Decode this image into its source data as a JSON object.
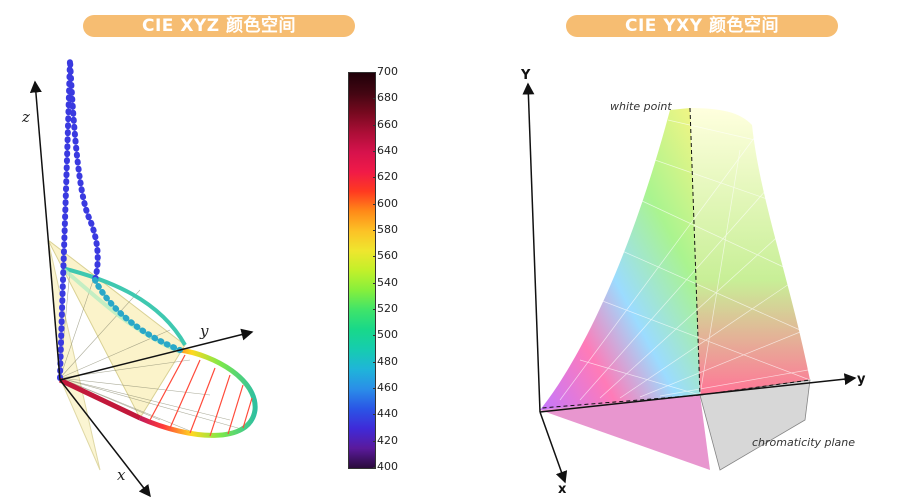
{
  "titles": {
    "left": "CIE XYZ 颜色空间",
    "right": "CIE YXY 颜色空间"
  },
  "left_figure": {
    "axes": {
      "x": "x",
      "y": "y",
      "z": "z"
    },
    "colorbar": {
      "ticks": [
        "700",
        "680",
        "660",
        "640",
        "620",
        "600",
        "580",
        "560",
        "540",
        "520",
        "500",
        "480",
        "460",
        "440",
        "420",
        "400"
      ]
    }
  },
  "right_figure": {
    "axes": {
      "Y": "Y",
      "x": "x",
      "y": "y"
    },
    "annotations": {
      "white_point": "white point",
      "chromaticity_plane": "chromaticity plane"
    }
  },
  "colors": {
    "title_pill": "#f6bd72",
    "title_text": "#ffffff"
  }
}
